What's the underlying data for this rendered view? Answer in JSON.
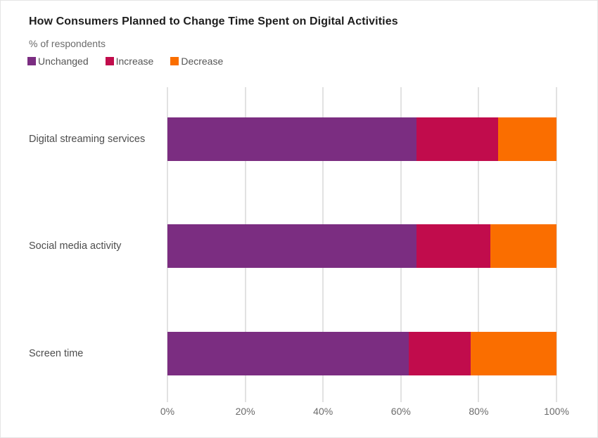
{
  "header": {
    "title": "How Consumers Planned to Change Time Spent on Digital Activities",
    "subtitle": "% of respondents"
  },
  "chart_data": {
    "type": "bar",
    "orientation": "horizontal",
    "stacked": true,
    "title": "How Consumers Planned to Change Time Spent on Digital Activities",
    "subtitle": "% of respondents",
    "categories": [
      "Digital streaming services",
      "Social media activity",
      "Screen time"
    ],
    "series": [
      {
        "name": "Unchanged",
        "color": "#7b2d81",
        "values": [
          64,
          64,
          62
        ]
      },
      {
        "name": "Increase",
        "color": "#c10c4c",
        "values": [
          21,
          19,
          16
        ]
      },
      {
        "name": "Decrease",
        "color": "#fa6e00",
        "values": [
          15,
          17,
          22
        ]
      }
    ],
    "xlim": [
      0,
      100
    ],
    "x_ticks": [
      "0%",
      "20%",
      "40%",
      "60%",
      "80%",
      "100%"
    ],
    "grid": true,
    "legend_position": "top",
    "colors": {
      "grid": "#e2e2e2",
      "title_text": "#1e1e1e",
      "axis_text": "#6b6b6b",
      "label_text": "#4d4d4d"
    }
  }
}
